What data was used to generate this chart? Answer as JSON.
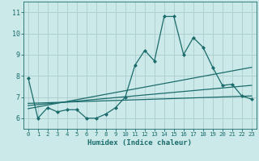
{
  "xlabel": "Humidex (Indice chaleur)",
  "ylabel": "",
  "background_color": "#cce9e9",
  "grid_color": "#b0d0d0",
  "line_color": "#1a6b6b",
  "xlim": [
    -0.5,
    23.5
  ],
  "ylim": [
    5.5,
    11.5
  ],
  "yticks": [
    6,
    7,
    8,
    9,
    10,
    11
  ],
  "xticks": [
    0,
    1,
    2,
    3,
    4,
    5,
    6,
    7,
    8,
    9,
    10,
    11,
    12,
    13,
    14,
    15,
    16,
    17,
    18,
    19,
    20,
    21,
    22,
    23
  ],
  "series": [
    {
      "x": [
        0,
        1,
        2,
        3,
        4,
        5,
        6,
        7,
        8,
        9,
        10,
        11,
        12,
        13,
        14,
        15,
        16,
        17,
        18,
        19,
        20,
        21,
        22,
        23
      ],
      "y": [
        7.9,
        6.0,
        6.5,
        6.3,
        6.4,
        6.4,
        6.0,
        6.0,
        6.2,
        6.5,
        7.0,
        8.5,
        9.2,
        8.7,
        10.8,
        10.8,
        9.0,
        9.8,
        9.35,
        8.4,
        7.55,
        7.6,
        7.05,
        6.9
      ],
      "marker": "D",
      "markersize": 2.0,
      "linewidth": 0.9
    },
    {
      "x": [
        0,
        23
      ],
      "y": [
        6.45,
        8.4
      ],
      "linewidth": 0.9
    },
    {
      "x": [
        0,
        23
      ],
      "y": [
        6.6,
        7.55
      ],
      "linewidth": 0.9
    },
    {
      "x": [
        0,
        23
      ],
      "y": [
        6.7,
        7.05
      ],
      "linewidth": 0.9
    }
  ]
}
